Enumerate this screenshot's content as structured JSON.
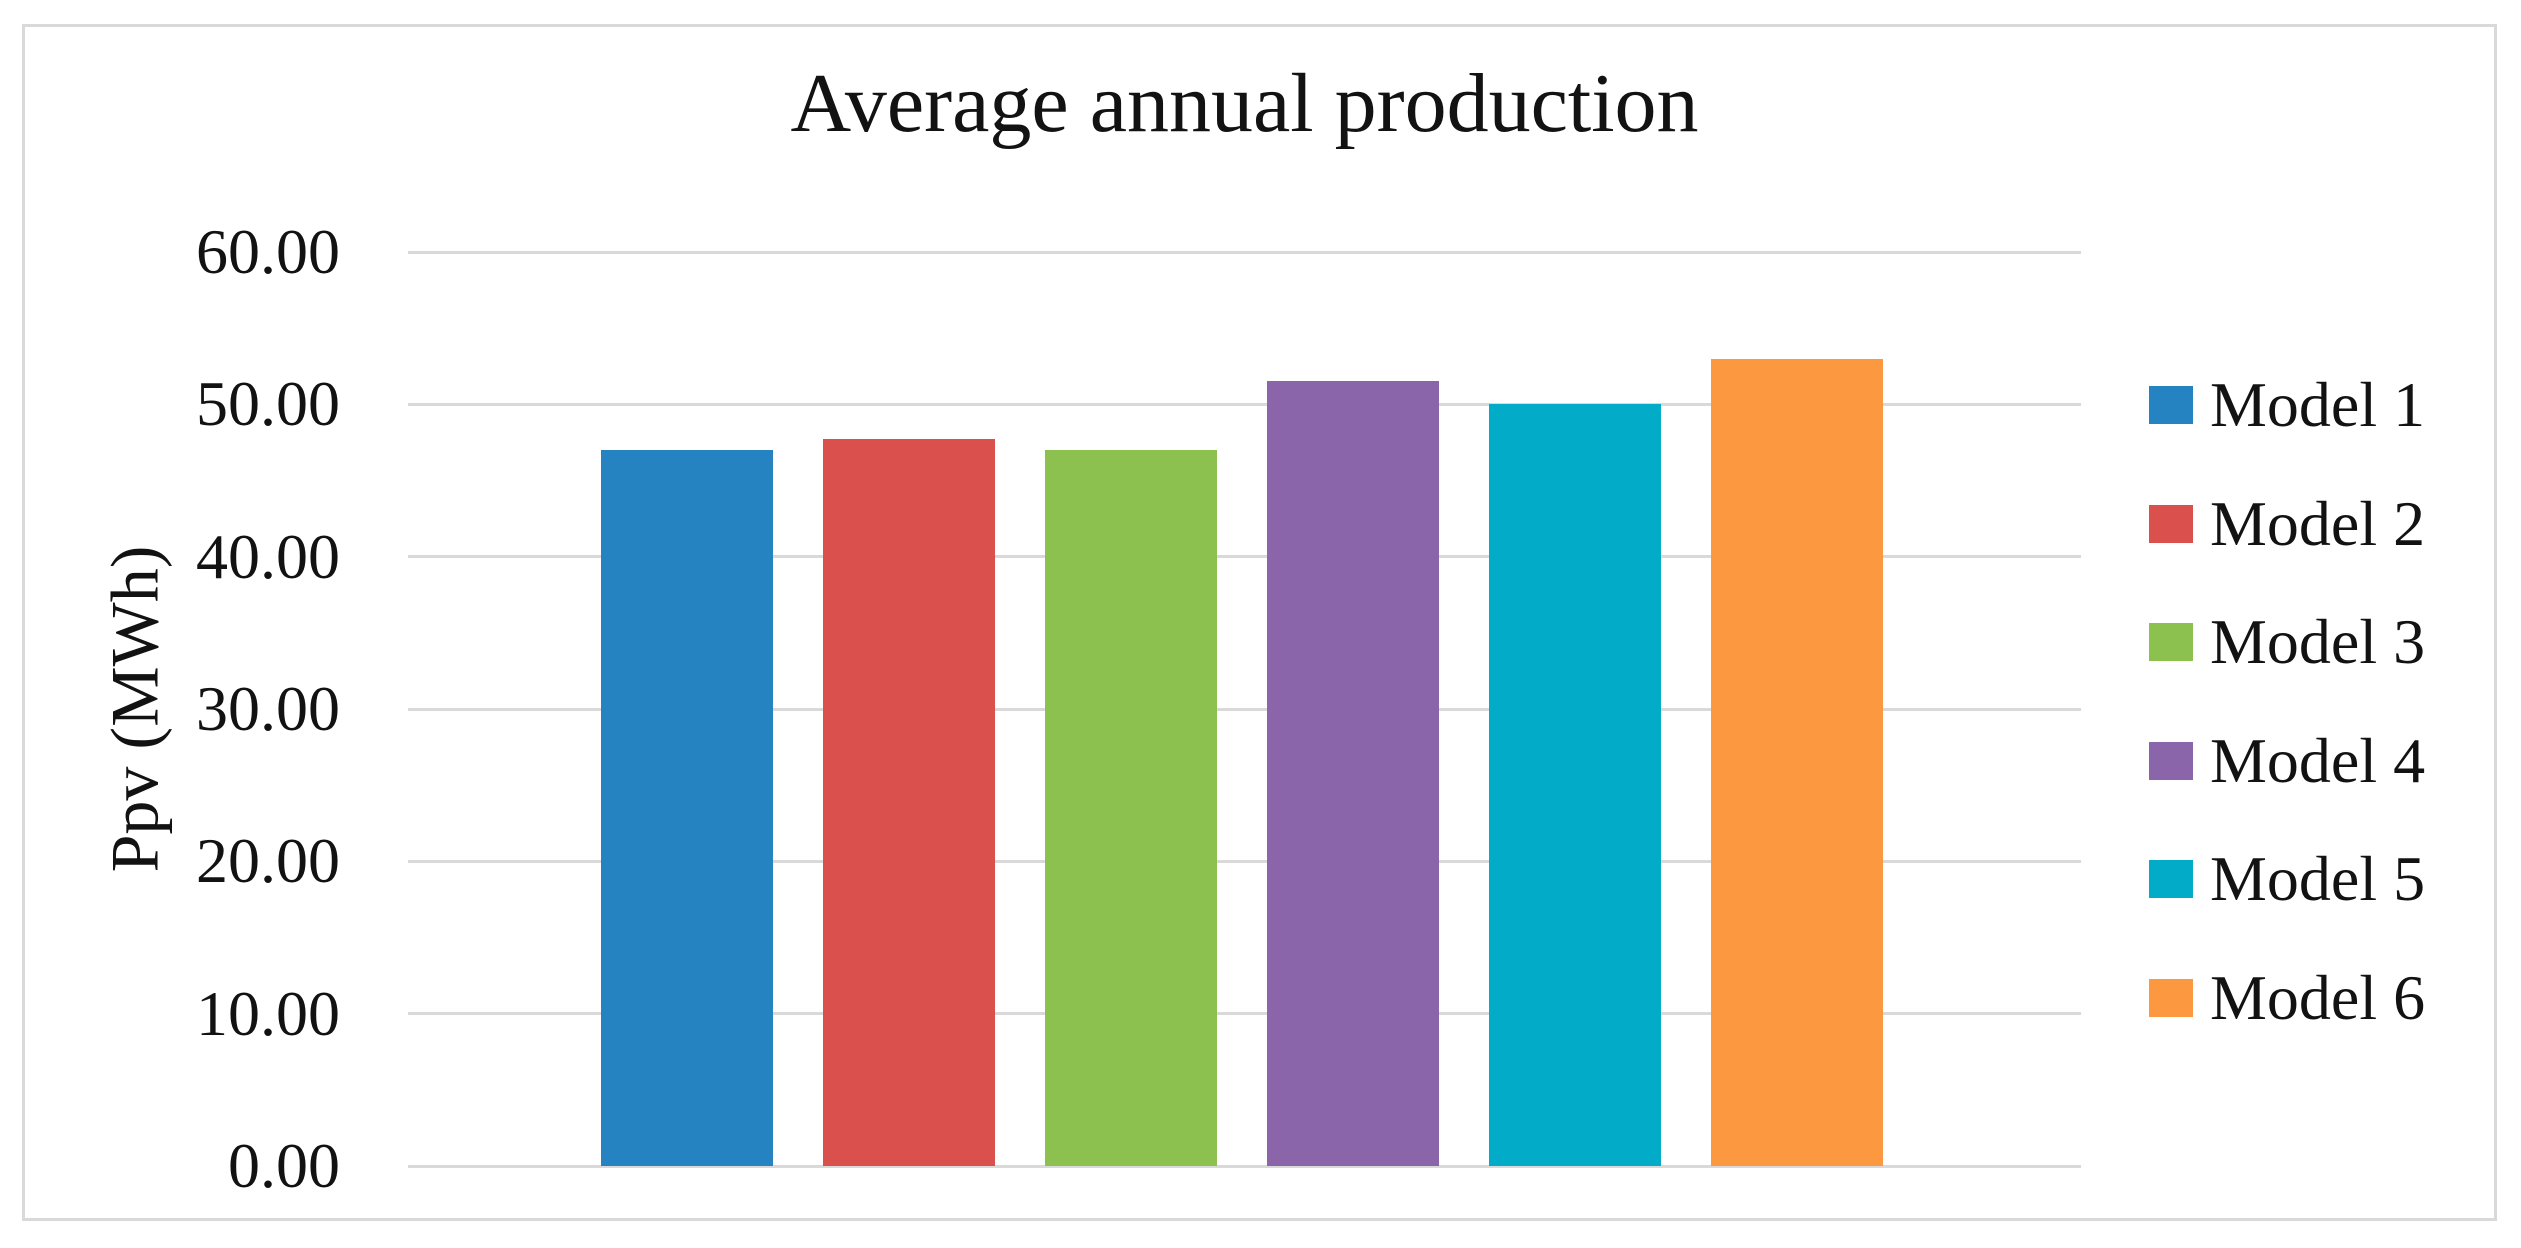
{
  "chart_data": {
    "type": "bar",
    "title": "Average annual production",
    "xlabel": "",
    "ylabel": "Ppv (MWh)",
    "categories": [
      "Model 1",
      "Model 2",
      "Model 3",
      "Model 4",
      "Model 5",
      "Model 6"
    ],
    "values": [
      47.0,
      47.7,
      47.0,
      51.5,
      50.0,
      53.0
    ],
    "ylim": [
      0,
      60
    ],
    "yticks": [
      0,
      10,
      20,
      30,
      40,
      50,
      60
    ],
    "ytick_labels": [
      "0.00",
      "10.00",
      "20.00",
      "30.00",
      "40.00",
      "50.00",
      "60.00"
    ],
    "grid": "horizontal",
    "legend_position": "right",
    "bar_colors": [
      "#2583C1",
      "#D9504D",
      "#8CC04F",
      "#8B65A9",
      "#02ACC8",
      "#FB9840"
    ],
    "gridline_color": "#D9D9D9",
    "figure_border_color": "#D9D9D9",
    "text_color": "#121212",
    "background_color": "#FFFFFF"
  }
}
